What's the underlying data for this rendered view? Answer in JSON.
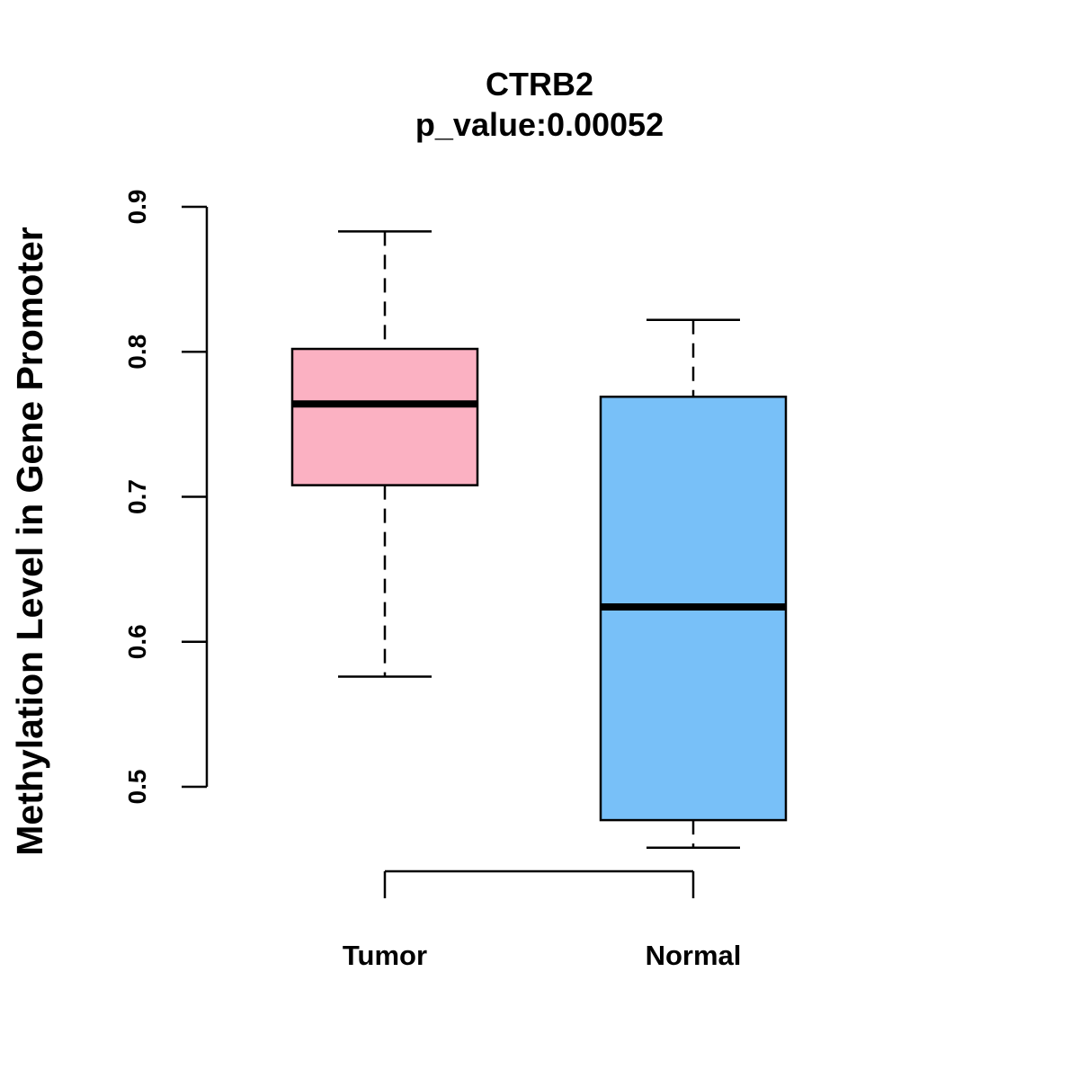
{
  "chart_data": {
    "type": "boxplot",
    "title": "CTRB2",
    "subtitle": "p_value:0.00052",
    "xlabel": "",
    "ylabel": "Methylation Level in Gene Promoter",
    "ylim": [
      0.43,
      0.92
    ],
    "y_ticks": [
      0.5,
      0.6,
      0.7,
      0.8,
      0.9
    ],
    "y_tick_labels": [
      "0.5",
      "0.6",
      "0.7",
      "0.8",
      "0.9"
    ],
    "grid": false,
    "categories": [
      "Tumor",
      "Normal"
    ],
    "series": [
      {
        "name": "Tumor",
        "whisker_low": 0.576,
        "q1": 0.708,
        "median": 0.764,
        "q3": 0.802,
        "whisker_high": 0.883,
        "color": "#FBB1C2"
      },
      {
        "name": "Normal",
        "whisker_low": 0.458,
        "q1": 0.477,
        "median": 0.624,
        "q3": 0.769,
        "whisker_high": 0.822,
        "color": "#78C0F8"
      }
    ]
  }
}
